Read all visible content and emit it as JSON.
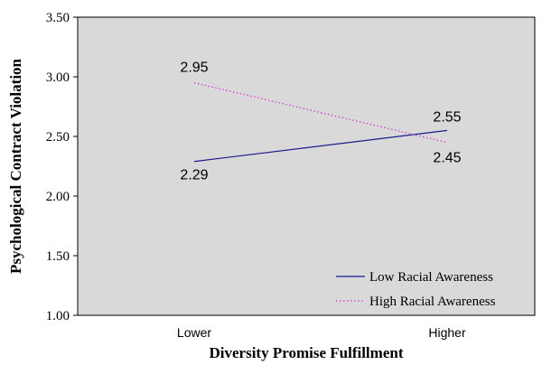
{
  "chart_data": {
    "type": "line",
    "title": "",
    "xlabel": "Diversity Promise Fulfillment",
    "ylabel": "Psychological Contract Violation",
    "categories": [
      "Lower",
      "Higher"
    ],
    "ylim": [
      1.0,
      3.5
    ],
    "yticks": [
      "1.00",
      "1.50",
      "2.00",
      "2.50",
      "3.00",
      "3.50"
    ],
    "grid": false,
    "legend_position": "bottom-right",
    "series": [
      {
        "name": "Low Racial Awareness",
        "values": [
          2.29,
          2.55
        ],
        "labels": [
          "2.29",
          "2.55"
        ],
        "color": "#1a1a8c",
        "style": "solid"
      },
      {
        "name": "High Racial Awareness",
        "values": [
          2.95,
          2.45
        ],
        "labels": [
          "2.95",
          "2.45"
        ],
        "color": "#d633d6",
        "style": "dotted"
      }
    ],
    "plot_background": "#d9d9d9"
  }
}
